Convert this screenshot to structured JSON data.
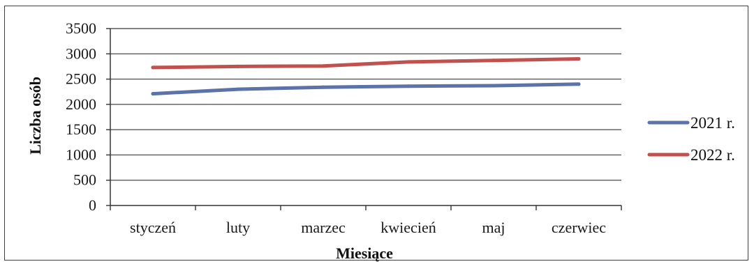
{
  "chart_data": {
    "type": "line",
    "categories": [
      "styczeń",
      "luty",
      "marzec",
      "kwiecień",
      "maj",
      "czerwiec"
    ],
    "series": [
      {
        "name": "2021 r.",
        "values": [
          2210,
          2300,
          2340,
          2360,
          2370,
          2400
        ],
        "color": "#5b73a8"
      },
      {
        "name": "2022 r.",
        "values": [
          2730,
          2750,
          2760,
          2840,
          2870,
          2900
        ],
        "color": "#c1514e"
      }
    ],
    "title": "",
    "xlabel": "Miesiące",
    "ylabel": "Liczba osób",
    "ylim": [
      0,
      3500
    ],
    "yticks": [
      "0",
      "500",
      "1000",
      "1500",
      "2000",
      "2500",
      "3000",
      "3500"
    ],
    "grid": true,
    "legend_position": "right"
  }
}
